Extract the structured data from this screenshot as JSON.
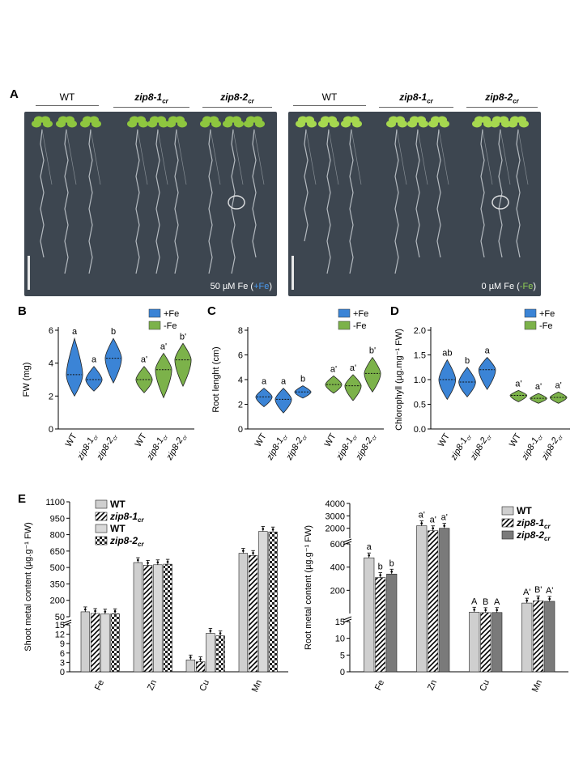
{
  "panel_labels": {
    "A": "A",
    "B": "B",
    "C": "C",
    "D": "D",
    "E": "E"
  },
  "panelA": {
    "left": {
      "headers": [
        "WT",
        "zip8-1",
        "zip8-2"
      ],
      "header_sub": "cr",
      "condition_prefix": "50 µM Fe (",
      "condition_tag": "+Fe",
      "condition_suffix": ")"
    },
    "right": {
      "headers": [
        "WT",
        "zip8-1",
        "zip8-2"
      ],
      "header_sub": "cr",
      "condition_prefix": "0 µM Fe (",
      "condition_tag": "-Fe",
      "condition_suffix": ")"
    }
  },
  "colors": {
    "plusFe": "#3b84d6",
    "minusFe": "#7cb24a",
    "wt_bar": "#cfcfcf",
    "zip_bar": "#7a7a7a",
    "photo_bg": "#3d4650"
  },
  "chart_data": [
    {
      "type": "violin",
      "panel": "B",
      "ylabel": "FW (mg)",
      "ylim": [
        0,
        6
      ],
      "yticks": [
        0,
        2,
        4,
        6
      ],
      "legend": [
        "+Fe",
        "-Fe"
      ],
      "categories": [
        "WT",
        "zip8-1",
        "zip8-2",
        "WT",
        "zip8-1",
        "zip8-2"
      ],
      "category_sub": [
        "",
        "cr",
        "cr",
        "",
        "cr",
        "cr"
      ],
      "groups": [
        "+Fe",
        "+Fe",
        "+Fe",
        "-Fe",
        "-Fe",
        "-Fe"
      ],
      "medians": [
        3.3,
        3.0,
        4.3,
        3.0,
        3.6,
        4.2
      ],
      "ranges": [
        [
          2.0,
          5.5
        ],
        [
          2.3,
          3.8
        ],
        [
          2.8,
          5.5
        ],
        [
          2.2,
          3.8
        ],
        [
          1.9,
          4.6
        ],
        [
          2.6,
          5.2
        ]
      ],
      "letters": [
        "a",
        "a",
        "b",
        "a'",
        "a'",
        "b'"
      ]
    },
    {
      "type": "violin",
      "panel": "C",
      "ylabel": "Root lenght (cm)",
      "ylim": [
        0,
        8
      ],
      "yticks": [
        0,
        2,
        4,
        6,
        8
      ],
      "legend": [
        "+Fe",
        "-Fe"
      ],
      "categories": [
        "WT",
        "zip8-1",
        "zip8-2",
        "WT",
        "zip8-1",
        "zip8-2"
      ],
      "category_sub": [
        "",
        "cr",
        "cr",
        "",
        "cr",
        "cr"
      ],
      "groups": [
        "+Fe",
        "+Fe",
        "+Fe",
        "-Fe",
        "-Fe",
        "-Fe"
      ],
      "medians": [
        2.6,
        2.4,
        3.0,
        3.6,
        3.5,
        4.5
      ],
      "ranges": [
        [
          1.8,
          3.3
        ],
        [
          1.3,
          3.3
        ],
        [
          2.5,
          3.5
        ],
        [
          2.9,
          4.3
        ],
        [
          2.3,
          4.4
        ],
        [
          3.0,
          5.8
        ]
      ],
      "letters": [
        "a",
        "a",
        "b",
        "a'",
        "a'",
        "b'"
      ]
    },
    {
      "type": "violin",
      "panel": "D",
      "ylabel": "Chlorophyll (µg.mg⁻¹ FW)",
      "ylim": [
        0,
        2.0
      ],
      "yticks": [
        0,
        0.5,
        1.0,
        1.5,
        2.0
      ],
      "legend": [
        "+Fe",
        "-Fe"
      ],
      "categories": [
        "WT",
        "zip8-1",
        "zip8-2",
        "WT",
        "zip8-1",
        "zip8-2"
      ],
      "category_sub": [
        "",
        "cr",
        "cr",
        "",
        "cr",
        "cr"
      ],
      "groups": [
        "+Fe",
        "+Fe",
        "+Fe",
        "-Fe",
        "-Fe",
        "-Fe"
      ],
      "medians": [
        1.0,
        0.95,
        1.2,
        0.68,
        0.62,
        0.64
      ],
      "ranges": [
        [
          0.6,
          1.4
        ],
        [
          0.65,
          1.25
        ],
        [
          0.8,
          1.45
        ],
        [
          0.55,
          0.78
        ],
        [
          0.52,
          0.72
        ],
        [
          0.52,
          0.75
        ]
      ],
      "letters": [
        "ab",
        "b",
        "a",
        "a'",
        "a'",
        "a'"
      ]
    },
    {
      "type": "bar",
      "panel": "E-left",
      "ylabel": "Shoot metal content (µg.g⁻¹ FW)",
      "categories": [
        "Fe",
        "Zn",
        "Cu",
        "Mn"
      ],
      "series": [
        {
          "name": "WT",
          "sub": "",
          "values": [
            95,
            545,
            3.8,
            630
          ]
        },
        {
          "name": "zip8-1",
          "sub": "cr",
          "values": [
            80,
            520,
            3.2,
            610
          ]
        },
        {
          "name": "WT",
          "sub": "",
          "values": [
            75,
            525,
            12.3,
            830
          ]
        },
        {
          "name": "zip8-2",
          "sub": "cr",
          "values": [
            78,
            530,
            11.5,
            825
          ]
        }
      ],
      "upper_ticks": [
        50,
        200,
        350,
        500,
        650,
        800,
        950,
        1100
      ],
      "lower_ticks": [
        0,
        3,
        6,
        9,
        12,
        15
      ]
    },
    {
      "type": "bar",
      "panel": "E-right",
      "ylabel": "Root metal content (µg.g⁻¹ FW)",
      "categories": [
        "Fe",
        "Zn",
        "Cu",
        "Mn"
      ],
      "series": [
        {
          "name": "WT",
          "sub": "",
          "values": [
            480,
            2200,
            12.0,
            90
          ]
        },
        {
          "name": "zip8-1",
          "sub": "cr",
          "values": [
            310,
            1800,
            7.8,
            110
          ]
        },
        {
          "name": "zip8-2",
          "sub": "cr",
          "values": [
            340,
            2000,
            8.7,
            105
          ]
        }
      ],
      "letters": [
        [
          "a",
          "b",
          "b"
        ],
        [
          "a'",
          "a'",
          "a'"
        ],
        [
          "A",
          "B",
          "A"
        ],
        [
          "A'",
          "B'",
          "A'"
        ]
      ],
      "top_ticks": [
        1000,
        2000,
        3000,
        4000
      ],
      "mid_ticks": [
        0,
        200,
        400,
        600
      ],
      "lower_ticks": [
        0,
        5,
        10,
        15
      ]
    }
  ]
}
